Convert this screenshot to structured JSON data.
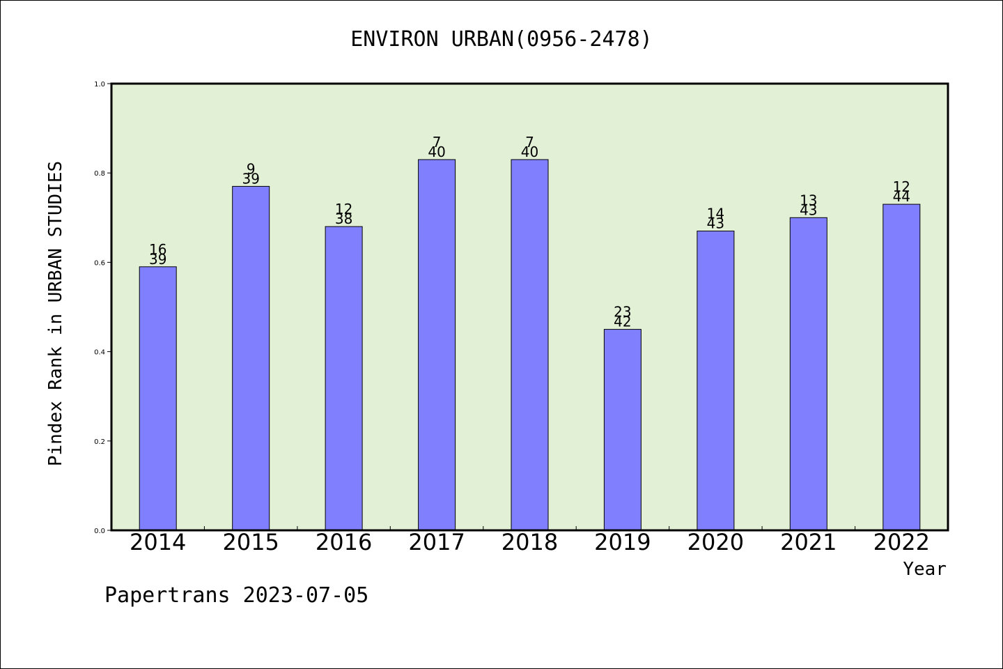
{
  "chart_data": {
    "type": "bar",
    "title": "ENVIRON URBAN(0956-2478)",
    "xlabel": "Year",
    "ylabel": "Pindex Rank in URBAN STUDIES",
    "categories": [
      "2014",
      "2015",
      "2016",
      "2017",
      "2018",
      "2019",
      "2020",
      "2021",
      "2022"
    ],
    "values": [
      0.59,
      0.77,
      0.68,
      0.83,
      0.83,
      0.45,
      0.67,
      0.7,
      0.73
    ],
    "rank": [
      "16",
      "9",
      "12",
      "7",
      "7",
      "23",
      "14",
      "13",
      "12"
    ],
    "total": [
      "39",
      "39",
      "38",
      "40",
      "40",
      "42",
      "43",
      "43",
      "44"
    ],
    "ylim": [
      0,
      1.0
    ],
    "yticks": [
      "0.0",
      "0.2",
      "0.4",
      "0.6",
      "0.8",
      "1.0"
    ],
    "grid": false,
    "colors": {
      "bar": "#8080ff",
      "plot_bg": "#e2f0d6"
    }
  },
  "footer": {
    "credit": "Papertrans 2023-07-05"
  }
}
